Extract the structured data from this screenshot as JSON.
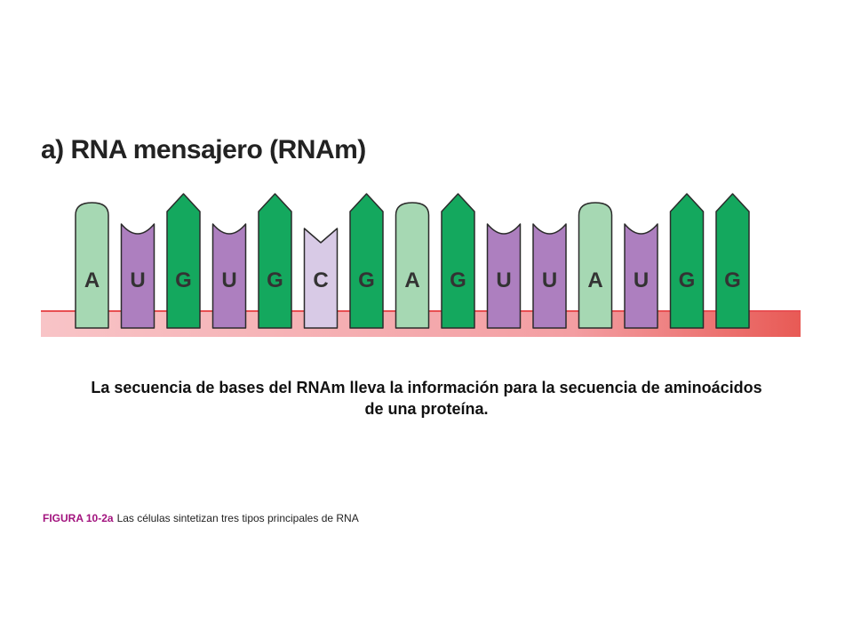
{
  "title": "a) RNA mensajero (RNAm)",
  "sequence": [
    "A",
    "U",
    "G",
    "U",
    "G",
    "C",
    "G",
    "A",
    "G",
    "U",
    "U",
    "A",
    "U",
    "G",
    "G"
  ],
  "base_colors": {
    "A": "#a6d8b3",
    "U": "#ad7fbf",
    "G": "#14a85e",
    "C": "#d8cae6"
  },
  "backbone_color": "#f5aeb4",
  "backbone_edge_color": "#e84f52",
  "caption": "La secuencia de bases del RNAm lleva la información para la secuencia de aminoácidos de una proteína.",
  "figure_label": "FIGURA 10-2a",
  "figure_text": "Las células sintetizan tres tipos principales de RNA"
}
